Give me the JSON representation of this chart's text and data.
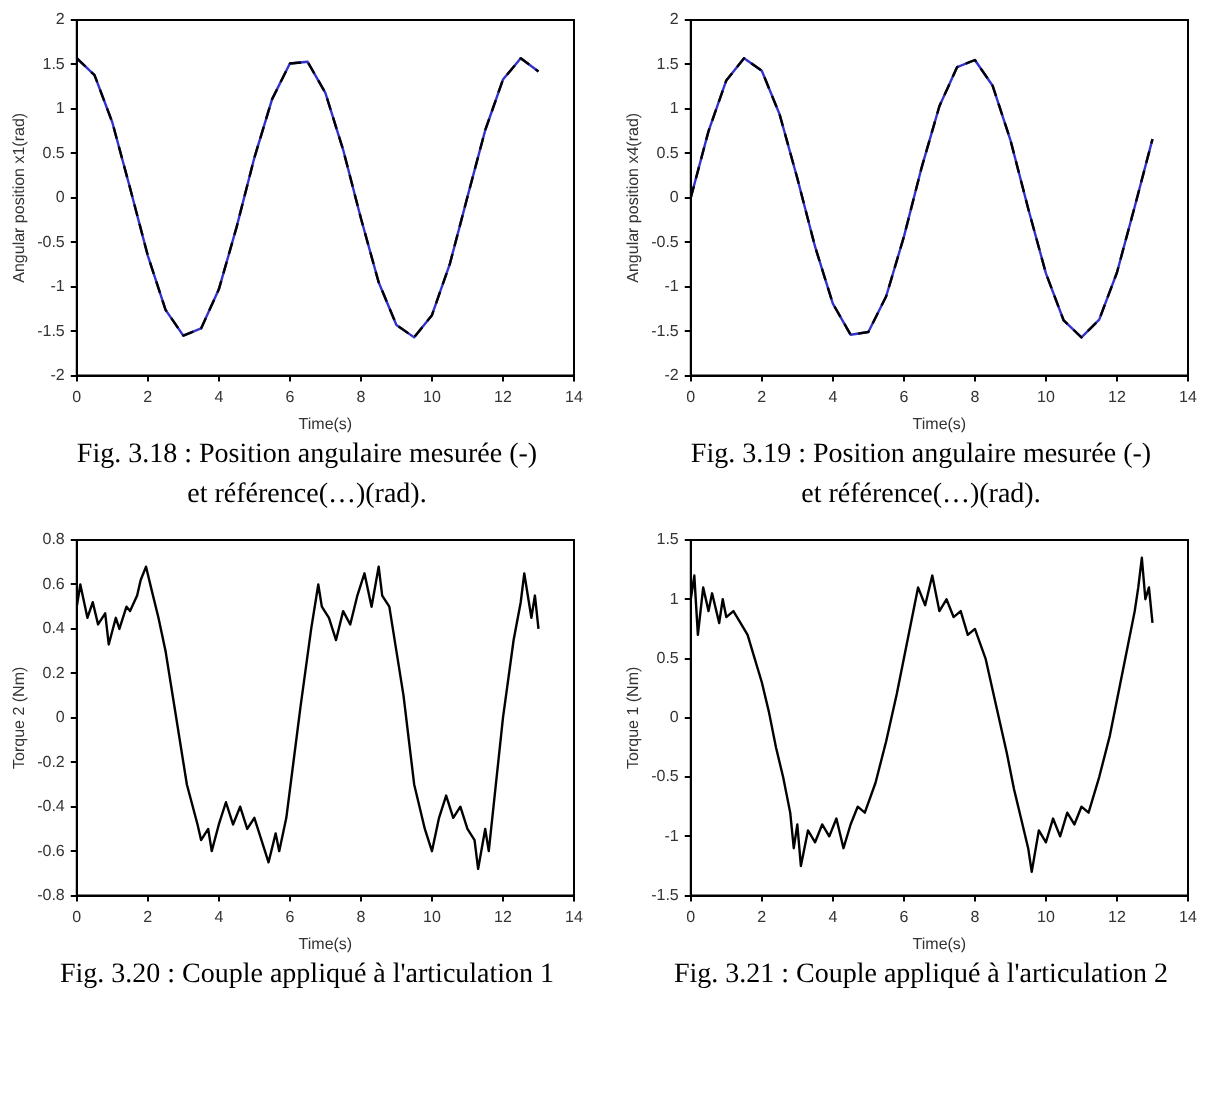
{
  "chart_data": [
    {
      "type": "line",
      "xlabel": "Time(s)",
      "ylabel": "Angular position x1(rad)",
      "annotations": [
        "Fig. 3.18 :  Position angulaire mesurée (-)",
        "et référence(…)(rad)."
      ],
      "x": [
        0,
        0.5,
        1,
        1.5,
        2,
        2.5,
        3,
        3.5,
        4,
        4.5,
        5,
        5.5,
        6,
        6.5,
        7,
        7.5,
        8,
        8.5,
        9,
        9.5,
        10,
        10.5,
        11,
        11.5,
        12,
        12.5,
        13
      ],
      "xlim": [
        0,
        14
      ],
      "xticks": [
        0,
        2,
        4,
        6,
        8,
        10,
        12,
        14
      ],
      "ylim": [
        -2,
        2
      ],
      "yticks": [
        -2,
        -1.5,
        -1,
        -0.5,
        0,
        0.5,
        1,
        1.5,
        2
      ],
      "grid": false,
      "legend": false,
      "marker": "none",
      "series": [
        {
          "color": "#3333cc",
          "line_style": "solid",
          "values": [
            1.57,
            1.38,
            0.85,
            0.11,
            -0.65,
            -1.26,
            -1.55,
            -1.47,
            -1.03,
            -0.33,
            0.45,
            1.11,
            1.51,
            1.53,
            1.18,
            0.54,
            -0.23,
            -0.95,
            -1.43,
            -1.57,
            -1.32,
            -0.75,
            0.01,
            0.76,
            1.33,
            1.57,
            1.42
          ]
        },
        {
          "color": "#000000",
          "line_style": "dashed",
          "values": [
            1.57,
            1.38,
            0.85,
            0.11,
            -0.65,
            -1.26,
            -1.55,
            -1.47,
            -1.03,
            -0.33,
            0.45,
            1.11,
            1.51,
            1.53,
            1.18,
            0.54,
            -0.23,
            -0.95,
            -1.43,
            -1.57,
            -1.32,
            -0.75,
            0.01,
            0.76,
            1.33,
            1.57,
            1.42
          ]
        }
      ]
    },
    {
      "type": "line",
      "xlabel": "Time(s)",
      "ylabel": "Angular position x4(rad)",
      "annotations": [
        "Fig. 3.19 :  Position angulaire mesurée (-)",
        "et référence(…)(rad)."
      ],
      "x": [
        0,
        0.5,
        1,
        1.5,
        2,
        2.5,
        3,
        3.5,
        4,
        4.5,
        5,
        5.5,
        6,
        6.5,
        7,
        7.5,
        8,
        8.5,
        9,
        9.5,
        10,
        10.5,
        11,
        11.5,
        12,
        12.5,
        13
      ],
      "xlim": [
        0,
        14
      ],
      "xticks": [
        0,
        2,
        4,
        6,
        8,
        10,
        12,
        14
      ],
      "ylim": [
        -2,
        2
      ],
      "yticks": [
        -2,
        -1.5,
        -1,
        -0.5,
        0,
        0.5,
        1,
        1.5,
        2
      ],
      "grid": false,
      "legend": false,
      "marker": "none",
      "series": [
        {
          "color": "#3333cc",
          "line_style": "solid",
          "values": [
            0,
            0.75,
            1.32,
            1.57,
            1.43,
            0.94,
            0.22,
            -0.55,
            -1.19,
            -1.54,
            -1.51,
            -1.11,
            -0.44,
            0.34,
            1.03,
            1.47,
            1.55,
            1.26,
            0.65,
            -0.12,
            -0.85,
            -1.38,
            -1.57,
            -1.37,
            -0.84,
            -0.1,
            0.66
          ]
        },
        {
          "color": "#000000",
          "line_style": "dashed",
          "values": [
            0,
            0.75,
            1.32,
            1.57,
            1.43,
            0.94,
            0.22,
            -0.55,
            -1.19,
            -1.54,
            -1.51,
            -1.11,
            -0.44,
            0.34,
            1.03,
            1.47,
            1.55,
            1.26,
            0.65,
            -0.12,
            -0.85,
            -1.38,
            -1.57,
            -1.37,
            -0.84,
            -0.1,
            0.66
          ]
        }
      ]
    },
    {
      "type": "line",
      "xlabel": "Time(s)",
      "ylabel": "Torque 2 (Nm)",
      "annotations": [
        "Fig. 3.20 :  Couple appliqué à l'articulation 1"
      ],
      "xlim": [
        0,
        14
      ],
      "xticks": [
        0,
        2,
        4,
        6,
        8,
        10,
        12,
        14
      ],
      "ylim": [
        -0.8,
        0.8
      ],
      "yticks": [
        -0.8,
        -0.6,
        -0.4,
        -0.2,
        0,
        0.2,
        0.4,
        0.6,
        0.8
      ],
      "grid": false,
      "legend": false,
      "marker": "none",
      "series": [
        {
          "color": "#000000",
          "line_style": "solid",
          "x": [
            0,
            0.1,
            0.3,
            0.45,
            0.6,
            0.8,
            0.9,
            1.1,
            1.2,
            1.4,
            1.5,
            1.7,
            1.8,
            1.95,
            2.1,
            2.3,
            2.5,
            2.8,
            3.1,
            3.4,
            3.5,
            3.7,
            3.8,
            4.0,
            4.2,
            4.4,
            4.6,
            4.8,
            5.0,
            5.2,
            5.4,
            5.6,
            5.7,
            5.9,
            6.1,
            6.3,
            6.6,
            6.8,
            6.9,
            7.1,
            7.3,
            7.5,
            7.7,
            7.9,
            8.1,
            8.3,
            8.5,
            8.6,
            8.8,
            9.0,
            9.2,
            9.5,
            9.8,
            10.0,
            10.2,
            10.4,
            10.6,
            10.8,
            11.0,
            11.2,
            11.3,
            11.5,
            11.6,
            11.8,
            12.0,
            12.3,
            12.5,
            12.6,
            12.8,
            12.9,
            13
          ],
          "values": [
            0.5,
            0.6,
            0.45,
            0.52,
            0.42,
            0.47,
            0.33,
            0.45,
            0.4,
            0.5,
            0.48,
            0.55,
            0.62,
            0.68,
            0.58,
            0.45,
            0.3,
            0.0,
            -0.3,
            -0.48,
            -0.55,
            -0.5,
            -0.6,
            -0.48,
            -0.38,
            -0.48,
            -0.4,
            -0.5,
            -0.45,
            -0.55,
            -0.65,
            -0.52,
            -0.6,
            -0.45,
            -0.2,
            0.05,
            0.4,
            0.6,
            0.5,
            0.45,
            0.35,
            0.48,
            0.42,
            0.55,
            0.65,
            0.5,
            0.68,
            0.55,
            0.5,
            0.3,
            0.1,
            -0.3,
            -0.5,
            -0.6,
            -0.45,
            -0.35,
            -0.45,
            -0.4,
            -0.5,
            -0.55,
            -0.68,
            -0.5,
            -0.6,
            -0.3,
            0.0,
            0.35,
            0.52,
            0.65,
            0.45,
            0.55,
            0.4
          ]
        }
      ]
    },
    {
      "type": "line",
      "xlabel": "Time(s)",
      "ylabel": "Torque 1 (Nm)",
      "annotations": [
        "Fig. 3.21 :  Couple appliqué à l'articulation 2"
      ],
      "xlim": [
        0,
        14
      ],
      "xticks": [
        0,
        2,
        4,
        6,
        8,
        10,
        12,
        14
      ],
      "ylim": [
        -1.5,
        1.5
      ],
      "yticks": [
        -1.5,
        -1,
        -0.5,
        0,
        0.5,
        1,
        1.5
      ],
      "grid": false,
      "legend": false,
      "marker": "none",
      "series": [
        {
          "color": "#000000",
          "line_style": "solid",
          "x": [
            0,
            0.1,
            0.2,
            0.35,
            0.5,
            0.6,
            0.8,
            0.9,
            1.0,
            1.2,
            1.4,
            1.6,
            1.8,
            2.0,
            2.2,
            2.4,
            2.6,
            2.8,
            2.9,
            3.0,
            3.1,
            3.3,
            3.5,
            3.7,
            3.9,
            4.1,
            4.3,
            4.5,
            4.7,
            4.9,
            5.2,
            5.5,
            5.8,
            6.0,
            6.2,
            6.4,
            6.6,
            6.8,
            7.0,
            7.2,
            7.4,
            7.6,
            7.8,
            8.0,
            8.3,
            8.6,
            8.9,
            9.1,
            9.3,
            9.5,
            9.6,
            9.8,
            10.0,
            10.2,
            10.4,
            10.6,
            10.8,
            11.0,
            11.2,
            11.5,
            11.8,
            12.1,
            12.3,
            12.5,
            12.6,
            12.7,
            12.8,
            12.9,
            13
          ],
          "values": [
            1.0,
            1.2,
            0.7,
            1.1,
            0.9,
            1.05,
            0.8,
            1.0,
            0.85,
            0.9,
            0.8,
            0.7,
            0.5,
            0.3,
            0.05,
            -0.25,
            -0.5,
            -0.8,
            -1.1,
            -0.9,
            -1.25,
            -0.95,
            -1.05,
            -0.9,
            -1.0,
            -0.85,
            -1.1,
            -0.9,
            -0.75,
            -0.8,
            -0.55,
            -0.2,
            0.2,
            0.5,
            0.8,
            1.1,
            0.95,
            1.2,
            0.9,
            1.0,
            0.85,
            0.9,
            0.7,
            0.75,
            0.5,
            0.1,
            -0.3,
            -0.6,
            -0.85,
            -1.1,
            -1.3,
            -0.95,
            -1.05,
            -0.85,
            -1.0,
            -0.8,
            -0.9,
            -0.75,
            -0.8,
            -0.5,
            -0.15,
            0.3,
            0.6,
            0.9,
            1.1,
            1.35,
            1.0,
            1.1,
            0.8
          ]
        }
      ]
    }
  ]
}
